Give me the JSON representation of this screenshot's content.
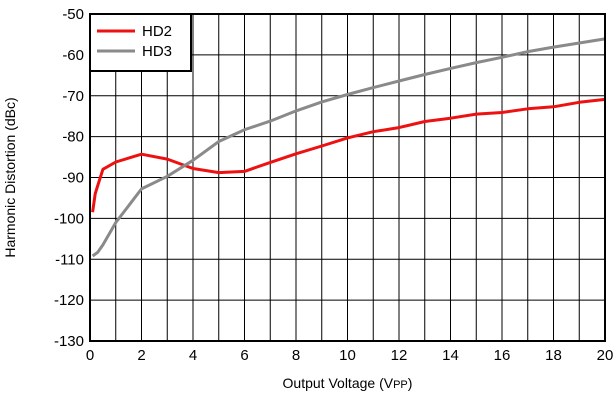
{
  "chart_data": {
    "type": "line",
    "title": "",
    "xlabel": "Output Voltage (V",
    "xlabel_sub": "PP",
    "xlabel_close": ")",
    "ylabel": "Harmonic Distortion (dBc)",
    "xlim": [
      0,
      20
    ],
    "ylim": [
      -130,
      -50
    ],
    "xticks": [
      0,
      2,
      4,
      6,
      8,
      10,
      12,
      14,
      16,
      18,
      20
    ],
    "yticks": [
      -50,
      -60,
      -70,
      -80,
      -90,
      -100,
      -110,
      -120,
      -130
    ],
    "x_grid_step": 1,
    "y_grid_step": 10,
    "grid": true,
    "legend": "top-left",
    "series": [
      {
        "name": "HD2",
        "color": "#ee1111",
        "points": [
          [
            0.1,
            -98.5
          ],
          [
            0.2,
            -94
          ],
          [
            0.3,
            -92
          ],
          [
            0.5,
            -88
          ],
          [
            1,
            -86.2
          ],
          [
            2,
            -84.3
          ],
          [
            3,
            -85.5
          ],
          [
            4,
            -87.8
          ],
          [
            5,
            -88.8
          ],
          [
            6,
            -88.5
          ],
          [
            7,
            -86.3
          ],
          [
            8,
            -84.2
          ],
          [
            9,
            -82.3
          ],
          [
            10,
            -80.3
          ],
          [
            11,
            -78.8
          ],
          [
            12,
            -77.8
          ],
          [
            13,
            -76.3
          ],
          [
            14,
            -75.5
          ],
          [
            15,
            -74.5
          ],
          [
            16,
            -74.1
          ],
          [
            17,
            -73.2
          ],
          [
            18,
            -72.7
          ],
          [
            19,
            -71.6
          ],
          [
            20,
            -70.9
          ]
        ]
      },
      {
        "name": "HD3",
        "color": "#8a8a8a",
        "points": [
          [
            0.1,
            -109.2
          ],
          [
            0.3,
            -108.3
          ],
          [
            0.5,
            -106.5
          ],
          [
            1,
            -101
          ],
          [
            2,
            -92.8
          ],
          [
            3,
            -89.7
          ],
          [
            4,
            -85.8
          ],
          [
            5,
            -81.2
          ],
          [
            6,
            -78.3
          ],
          [
            7,
            -76.2
          ],
          [
            8,
            -73.7
          ],
          [
            9,
            -71.5
          ],
          [
            10,
            -69.7
          ],
          [
            11,
            -68
          ],
          [
            12,
            -66.4
          ],
          [
            13,
            -64.8
          ],
          [
            14,
            -63.3
          ],
          [
            15,
            -61.9
          ],
          [
            16,
            -60.6
          ],
          [
            17,
            -59.2
          ],
          [
            18,
            -58.1
          ],
          [
            19,
            -57.1
          ],
          [
            20,
            -56.1
          ]
        ]
      }
    ]
  }
}
